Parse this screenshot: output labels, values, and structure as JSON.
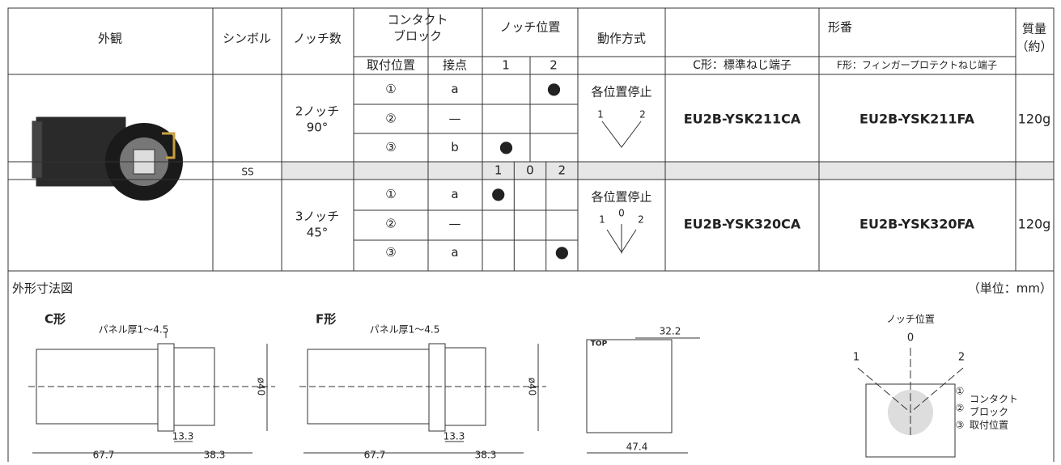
{
  "table": {
    "headers": {
      "appearance": "外観",
      "symbol": "シンボル",
      "notch_count": "ノッチ数",
      "contact_block": [
        "コンタクト",
        "ブロック"
      ],
      "mount_position": "取付位置",
      "contact": "接点",
      "notch_position": "ノッチ位置",
      "notch_positions": [
        "1",
        "2"
      ],
      "operation": "動作方式",
      "part_number": "形番",
      "c_type": "C形：標準ねじ端子",
      "f_type": "F形：フィンガープロテクトねじ端子",
      "mass": [
        "質量",
        "（約）"
      ]
    },
    "symbol": "SS",
    "blocks": [
      {
        "notch": [
          "2ノッチ",
          "90°"
        ],
        "rows": [
          [
            "①",
            "a",
            null,
            "●"
          ],
          [
            "②",
            "—",
            null,
            null
          ],
          [
            "③",
            "b",
            "●",
            null
          ]
        ],
        "operation": "各位置停止",
        "positions": [
          "1",
          "2"
        ],
        "c_part": "EU2B-YSK211CA",
        "f_part": "EU2B-YSK211FA",
        "mass": "120g"
      },
      {
        "header_positions": [
          "1",
          "0",
          "2"
        ],
        "notch": [
          "3ノッチ",
          "45°"
        ],
        "rows": [
          [
            "①",
            "a",
            "●",
            null,
            null
          ],
          [
            "②",
            "—",
            null,
            null,
            null
          ],
          [
            "③",
            "a",
            null,
            null,
            "●"
          ]
        ],
        "operation": "各位置停止",
        "positions": [
          "1",
          "0",
          "2"
        ],
        "c_part": "EU2B-YSK320CA",
        "f_part": "EU2B-YSK320FA",
        "mass": "120g"
      }
    ]
  },
  "figure": {
    "title": "外形寸法図",
    "unit": "（単位：mm）",
    "c_view": {
      "label": "C形",
      "panel": "パネル厚1～4.5",
      "length": "67.7",
      "front": "38.3",
      "offset": "13.3",
      "diameter": "ø40"
    },
    "f_view": {
      "label": "F形",
      "panel": "パネル厚1～4.5",
      "length": "67.7",
      "front": "38.3",
      "offset": "13.3",
      "diameter": "ø40"
    },
    "front_view": {
      "top": "TOP",
      "width_top": "32.2",
      "width_bottom": "47.4"
    },
    "notch_diagram": {
      "title": "ノッチ位置",
      "positions": [
        "1",
        "0",
        "2"
      ],
      "marks": [
        "①",
        "②",
        "③"
      ],
      "label": [
        "コンタクト",
        "ブロック",
        "取付位置"
      ]
    }
  }
}
